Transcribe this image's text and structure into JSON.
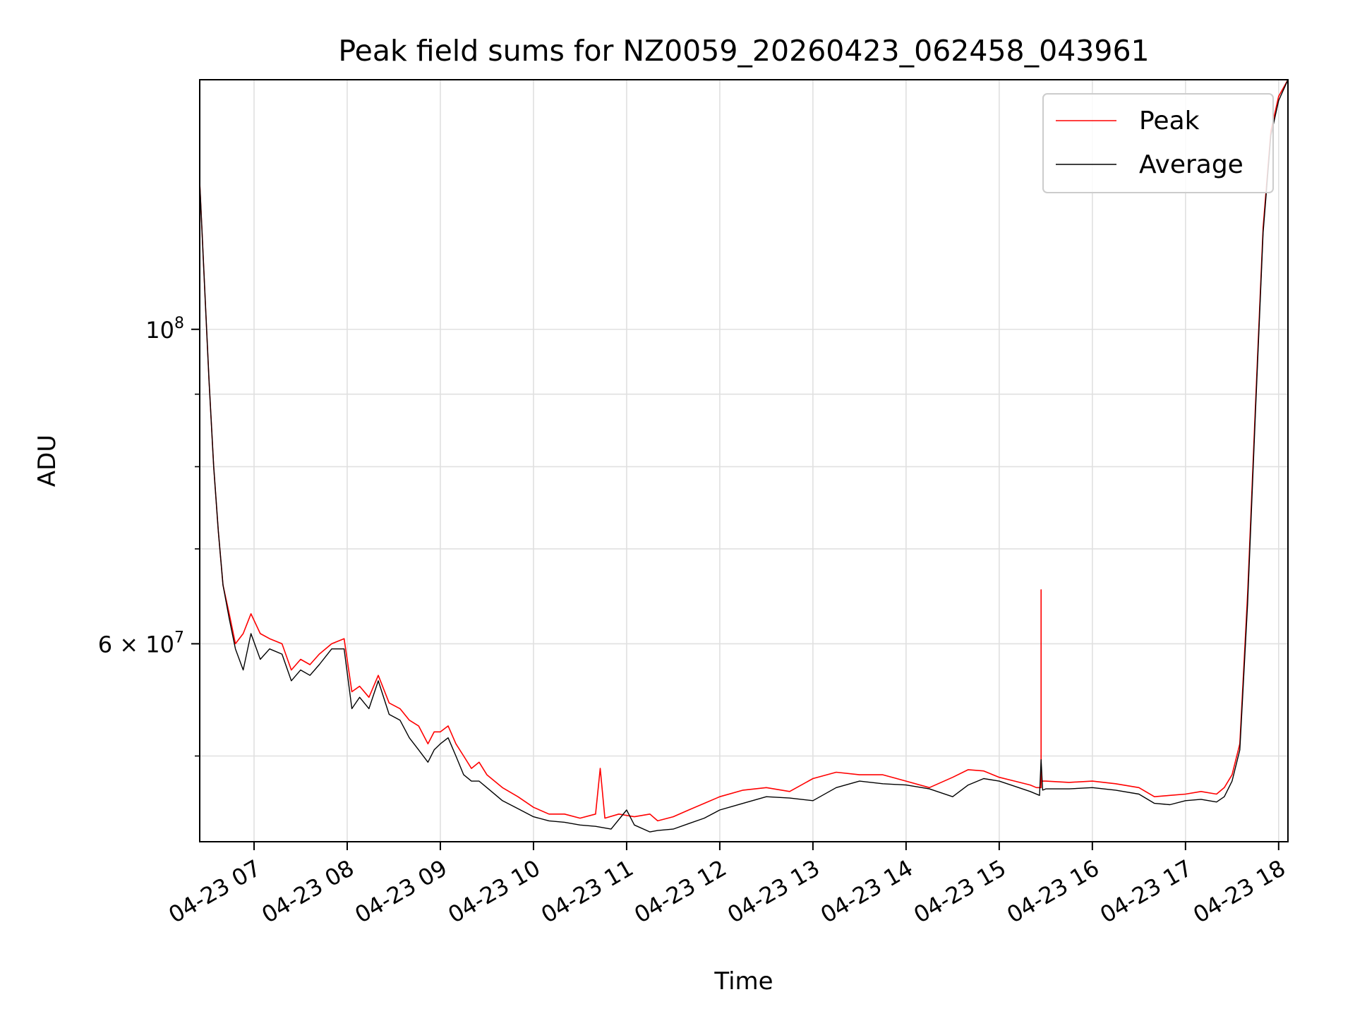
{
  "chart_data": {
    "type": "line",
    "title": "Peak field sums for NZ0059_20260423_062458_043961",
    "xlabel": "Time",
    "ylabel": "ADU",
    "y_scale": "log",
    "xlim": [
      "2026-04-23 06:25",
      "2026-04-23 18:06"
    ],
    "ylim": [
      43500000,
      150000000
    ],
    "x_ticks": [
      "04-23 07",
      "04-23 08",
      "04-23 09",
      "04-23 10",
      "04-23 11",
      "04-23 12",
      "04-23 13",
      "04-23 14",
      "04-23 15",
      "04-23 16",
      "04-23 17",
      "04-23 18"
    ],
    "x_tick_times": [
      "2026-04-23 07:00",
      "2026-04-23 08:00",
      "2026-04-23 09:00",
      "2026-04-23 10:00",
      "2026-04-23 11:00",
      "2026-04-23 12:00",
      "2026-04-23 13:00",
      "2026-04-23 14:00",
      "2026-04-23 15:00",
      "2026-04-23 16:00",
      "2026-04-23 17:00",
      "2026-04-23 18:00"
    ],
    "y_ticks": [
      {
        "value": 100000000,
        "base": "10",
        "exp": "8"
      },
      {
        "value": 60000000,
        "mantissa": "6",
        "base": "10",
        "exp": "7"
      }
    ],
    "y_minor_ticks": [
      50000000,
      70000000,
      80000000,
      90000000
    ],
    "grid": true,
    "legend_position": "top-right",
    "series": [
      {
        "name": "Peak",
        "color": "#ff0000",
        "x": [
          "2026-04-23 06:25",
          "2026-04-23 06:28",
          "2026-04-23 06:31",
          "2026-04-23 06:34",
          "2026-04-23 06:37",
          "2026-04-23 06:40",
          "2026-04-23 06:44",
          "2026-04-23 06:48",
          "2026-04-23 06:53",
          "2026-04-23 06:58",
          "2026-04-23 07:04",
          "2026-04-23 07:10",
          "2026-04-23 07:18",
          "2026-04-23 07:24",
          "2026-04-23 07:30",
          "2026-04-23 07:36",
          "2026-04-23 07:42",
          "2026-04-23 07:50",
          "2026-04-23 07:58",
          "2026-04-23 08:03",
          "2026-04-23 08:08",
          "2026-04-23 08:14",
          "2026-04-23 08:20",
          "2026-04-23 08:27",
          "2026-04-23 08:34",
          "2026-04-23 08:40",
          "2026-04-23 08:46",
          "2026-04-23 08:52",
          "2026-04-23 08:56",
          "2026-04-23 09:00",
          "2026-04-23 09:05",
          "2026-04-23 09:10",
          "2026-04-23 09:15",
          "2026-04-23 09:20",
          "2026-04-23 09:25",
          "2026-04-23 09:30",
          "2026-04-23 09:40",
          "2026-04-23 09:50",
          "2026-04-23 10:00",
          "2026-04-23 10:10",
          "2026-04-23 10:20",
          "2026-04-23 10:30",
          "2026-04-23 10:40",
          "2026-04-23 10:43",
          "2026-04-23 10:46",
          "2026-04-23 10:55",
          "2026-04-23 11:05",
          "2026-04-23 11:15",
          "2026-04-23 11:20",
          "2026-04-23 11:30",
          "2026-04-23 11:40",
          "2026-04-23 11:50",
          "2026-04-23 12:00",
          "2026-04-23 12:15",
          "2026-04-23 12:30",
          "2026-04-23 12:45",
          "2026-04-23 13:00",
          "2026-04-23 13:15",
          "2026-04-23 13:30",
          "2026-04-23 13:45",
          "2026-04-23 14:00",
          "2026-04-23 14:15",
          "2026-04-23 14:30",
          "2026-04-23 14:40",
          "2026-04-23 14:50",
          "2026-04-23 15:00",
          "2026-04-23 15:10",
          "2026-04-23 15:20",
          "2026-04-23 15:24",
          "2026-04-23 15:27",
          "2026-04-23 15:27",
          "2026-04-23 15:27",
          "2026-04-23 15:30",
          "2026-04-23 15:45",
          "2026-04-23 16:00",
          "2026-04-23 16:15",
          "2026-04-23 16:30",
          "2026-04-23 16:40",
          "2026-04-23 16:50",
          "2026-04-23 17:00",
          "2026-04-23 17:10",
          "2026-04-23 17:20",
          "2026-04-23 17:25",
          "2026-04-23 17:30",
          "2026-04-23 17:35",
          "2026-04-23 17:40",
          "2026-04-23 17:45",
          "2026-04-23 17:50",
          "2026-04-23 17:55",
          "2026-04-23 18:00",
          "2026-04-23 18:06"
        ],
        "y": [
          127000000,
          108000000,
          92000000,
          80000000,
          72000000,
          66000000,
          63000000,
          60000000,
          61000000,
          63000000,
          61000000,
          60500000,
          60000000,
          57500000,
          58500000,
          58000000,
          59000000,
          60000000,
          60500000,
          55500000,
          56000000,
          55000000,
          57000000,
          54500000,
          54000000,
          53000000,
          52500000,
          51000000,
          52000000,
          52000000,
          52500000,
          51000000,
          50000000,
          49000000,
          49500000,
          48500000,
          47500000,
          46800000,
          46000000,
          45500000,
          45500000,
          45200000,
          45500000,
          49000000,
          45200000,
          45500000,
          45300000,
          45500000,
          45000000,
          45300000,
          45800000,
          46300000,
          46800000,
          47300000,
          47500000,
          47200000,
          48200000,
          48700000,
          48500000,
          48500000,
          48000000,
          47500000,
          48300000,
          48900000,
          48800000,
          48300000,
          48000000,
          47700000,
          47500000,
          47500000,
          65500000,
          48000000,
          48000000,
          47900000,
          48000000,
          47800000,
          47500000,
          46800000,
          46900000,
          47000000,
          47200000,
          47000000,
          47500000,
          48500000,
          51000000,
          65000000,
          88000000,
          118000000,
          138000000,
          146000000,
          150000000
        ]
      },
      {
        "name": "Average",
        "color": "#000000",
        "x": [
          "2026-04-23 06:25",
          "2026-04-23 06:28",
          "2026-04-23 06:31",
          "2026-04-23 06:34",
          "2026-04-23 06:37",
          "2026-04-23 06:40",
          "2026-04-23 06:44",
          "2026-04-23 06:48",
          "2026-04-23 06:53",
          "2026-04-23 06:58",
          "2026-04-23 07:04",
          "2026-04-23 07:10",
          "2026-04-23 07:18",
          "2026-04-23 07:24",
          "2026-04-23 07:30",
          "2026-04-23 07:36",
          "2026-04-23 07:42",
          "2026-04-23 07:50",
          "2026-04-23 07:58",
          "2026-04-23 08:03",
          "2026-04-23 08:08",
          "2026-04-23 08:14",
          "2026-04-23 08:20",
          "2026-04-23 08:27",
          "2026-04-23 08:34",
          "2026-04-23 08:40",
          "2026-04-23 08:46",
          "2026-04-23 08:52",
          "2026-04-23 08:56",
          "2026-04-23 09:00",
          "2026-04-23 09:05",
          "2026-04-23 09:10",
          "2026-04-23 09:15",
          "2026-04-23 09:20",
          "2026-04-23 09:25",
          "2026-04-23 09:30",
          "2026-04-23 09:40",
          "2026-04-23 09:50",
          "2026-04-23 10:00",
          "2026-04-23 10:10",
          "2026-04-23 10:20",
          "2026-04-23 10:30",
          "2026-04-23 10:40",
          "2026-04-23 10:50",
          "2026-04-23 11:00",
          "2026-04-23 11:05",
          "2026-04-23 11:15",
          "2026-04-23 11:20",
          "2026-04-23 11:30",
          "2026-04-23 11:40",
          "2026-04-23 11:50",
          "2026-04-23 12:00",
          "2026-04-23 12:15",
          "2026-04-23 12:30",
          "2026-04-23 12:45",
          "2026-04-23 13:00",
          "2026-04-23 13:15",
          "2026-04-23 13:30",
          "2026-04-23 13:45",
          "2026-04-23 14:00",
          "2026-04-23 14:15",
          "2026-04-23 14:30",
          "2026-04-23 14:40",
          "2026-04-23 14:50",
          "2026-04-23 15:00",
          "2026-04-23 15:10",
          "2026-04-23 15:20",
          "2026-04-23 15:26",
          "2026-04-23 15:27",
          "2026-04-23 15:28",
          "2026-04-23 15:30",
          "2026-04-23 15:45",
          "2026-04-23 16:00",
          "2026-04-23 16:15",
          "2026-04-23 16:30",
          "2026-04-23 16:40",
          "2026-04-23 16:50",
          "2026-04-23 17:00",
          "2026-04-23 17:10",
          "2026-04-23 17:20",
          "2026-04-23 17:25",
          "2026-04-23 17:30",
          "2026-04-23 17:35",
          "2026-04-23 17:40",
          "2026-04-23 17:45",
          "2026-04-23 17:50",
          "2026-04-23 17:55",
          "2026-04-23 18:00",
          "2026-04-23 18:06"
        ],
        "y": [
          127000000,
          108000000,
          92000000,
          80000000,
          72000000,
          66000000,
          62500000,
          59500000,
          57500000,
          61000000,
          58500000,
          59500000,
          59000000,
          56500000,
          57500000,
          57000000,
          58000000,
          59500000,
          59500000,
          54000000,
          55000000,
          54000000,
          56500000,
          53500000,
          53000000,
          51500000,
          50500000,
          49500000,
          50500000,
          51000000,
          51500000,
          50000000,
          48500000,
          48000000,
          48000000,
          47500000,
          46500000,
          45900000,
          45300000,
          45000000,
          44900000,
          44700000,
          44600000,
          44400000,
          45800000,
          44700000,
          44200000,
          44300000,
          44400000,
          44800000,
          45200000,
          45800000,
          46300000,
          46800000,
          46700000,
          46500000,
          47500000,
          48000000,
          47800000,
          47700000,
          47400000,
          46800000,
          47700000,
          48200000,
          48000000,
          47600000,
          47200000,
          46900000,
          49700000,
          47300000,
          47400000,
          47400000,
          47500000,
          47300000,
          47000000,
          46300000,
          46200000,
          46500000,
          46600000,
          46400000,
          46800000,
          48000000,
          50500000,
          64000000,
          87000000,
          117000000,
          137000000,
          145000000,
          150000000
        ]
      }
    ]
  }
}
